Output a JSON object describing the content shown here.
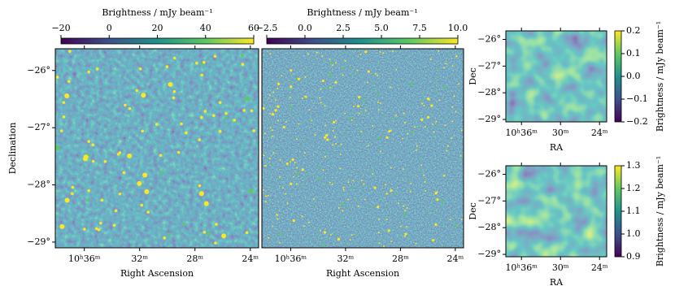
{
  "chart_data": [
    {
      "type": "image",
      "xlabel": "Right Ascension",
      "ylabel": "Declination",
      "xlim": [
        38.1,
        23.4
      ],
      "ylim": [
        -29.1,
        -25.62
      ],
      "xticks": [
        {
          "value": 36,
          "label": "10ʰ36ᵐ"
        },
        {
          "value": 32,
          "label": "32ᵐ"
        },
        {
          "value": 28,
          "label": "28ᵐ"
        },
        {
          "value": 24,
          "label": "24ᵐ"
        }
      ],
      "yticks": [
        {
          "value": -26,
          "label": "−26°"
        },
        {
          "value": -27,
          "label": "−27°"
        },
        {
          "value": -28,
          "label": "−28°"
        },
        {
          "value": -29,
          "label": "−29°"
        }
      ],
      "colorbar": {
        "label": "Brightness / mJy beam⁻¹",
        "orientation": "horizontal",
        "lim": [
          -20,
          60
        ],
        "ticks": [
          {
            "value": -20,
            "label": "−20"
          },
          0,
          20,
          40,
          60
        ]
      }
    },
    {
      "type": "image",
      "xlabel": "Right Ascension",
      "xlim": [
        38.1,
        23.4
      ],
      "ylim": [
        -29.1,
        -25.62
      ],
      "xticks": [
        {
          "value": 36,
          "label": "10ʰ36ᵐ"
        },
        {
          "value": 32,
          "label": "32ᵐ"
        },
        {
          "value": 28,
          "label": "28ᵐ"
        },
        {
          "value": 24,
          "label": "24ᵐ"
        }
      ],
      "colorbar": {
        "label": "Brightness / mJy beam⁻¹",
        "orientation": "horizontal",
        "lim": [
          -2.5,
          10.0
        ],
        "ticks": [
          {
            "value": -2.5,
            "label": "−2.5"
          },
          {
            "value": 0,
            "label": "0.0"
          },
          {
            "value": 2.5,
            "label": "2.5"
          },
          {
            "value": 5,
            "label": "5.0"
          },
          {
            "value": 7.5,
            "label": "7.5"
          },
          {
            "value": 10,
            "label": "10.0"
          }
        ]
      }
    },
    {
      "type": "image",
      "xlabel": "RA",
      "ylabel": "Dec",
      "xlim": [
        38.4,
        22.9
      ],
      "ylim": [
        -29.09,
        -25.68
      ],
      "xticks": [
        {
          "value": 36,
          "label": "10ʰ36ᵐ"
        },
        {
          "value": 30,
          "label": "30ᵐ"
        },
        {
          "value": 24,
          "label": "24ᵐ"
        }
      ],
      "yticks": [
        {
          "value": -26,
          "label": "−26°"
        },
        {
          "value": -27,
          "label": "−27°"
        },
        {
          "value": -28,
          "label": "−28°"
        },
        {
          "value": -29,
          "label": "−29°"
        }
      ],
      "colorbar": {
        "label": "Brightness / mJy beam⁻¹",
        "orientation": "vertical",
        "lim": [
          -0.2,
          0.2
        ],
        "ticks": [
          {
            "value": -0.2,
            "label": "−0.2"
          },
          {
            "value": -0.1,
            "label": "−0.1"
          },
          {
            "value": 0,
            "label": "0.0"
          },
          0.1,
          0.2
        ]
      }
    },
    {
      "type": "image",
      "xlabel": "RA",
      "ylabel": "Dec",
      "xlim": [
        38.4,
        22.9
      ],
      "ylim": [
        -29.09,
        -25.68
      ],
      "xticks": [
        {
          "value": 36,
          "label": "10ʰ36ᵐ"
        },
        {
          "value": 30,
          "label": "30ᵐ"
        },
        {
          "value": 24,
          "label": "24ᵐ"
        }
      ],
      "yticks": [
        {
          "value": -26,
          "label": "−26°"
        },
        {
          "value": -27,
          "label": "−27°"
        },
        {
          "value": -28,
          "label": "−28°"
        },
        {
          "value": -29,
          "label": "−29°"
        }
      ],
      "colorbar": {
        "label": "Brightness / mJy beam⁻¹",
        "orientation": "vertical",
        "lim": [
          0.9,
          1.3
        ],
        "ticks": [
          0.9,
          {
            "value": 1.0,
            "label": "1.0"
          },
          1.1,
          1.2,
          1.3
        ]
      }
    }
  ]
}
